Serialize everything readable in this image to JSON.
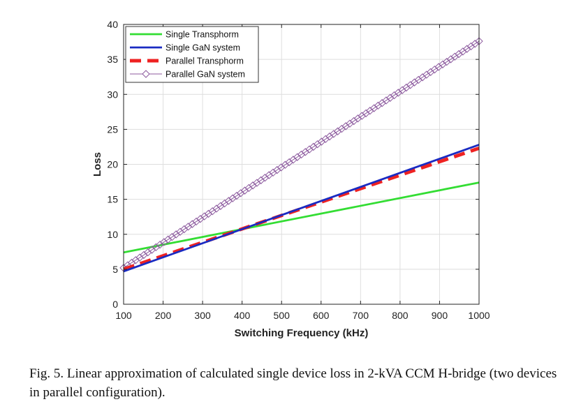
{
  "chart_data": {
    "type": "line",
    "xlabel": "Switching Frequency (kHz)",
    "ylabel": "Loss",
    "xlim": [
      100,
      1000
    ],
    "ylim": [
      0,
      40
    ],
    "xticks": [
      100,
      200,
      300,
      400,
      500,
      600,
      700,
      800,
      900,
      1000
    ],
    "yticks": [
      0,
      5,
      10,
      15,
      20,
      25,
      30,
      35,
      40
    ],
    "grid": true,
    "legend_position": "top-left",
    "series": [
      {
        "name": "Single Transphorm",
        "color": "#33dd33",
        "style": "solid",
        "marker": "none",
        "x": [
          100,
          1000
        ],
        "y": [
          7.4,
          17.4
        ]
      },
      {
        "name": "Single GaN system",
        "color": "#1a2bc2",
        "style": "solid",
        "marker": "none",
        "x": [
          100,
          1000
        ],
        "y": [
          4.7,
          22.8
        ]
      },
      {
        "name": "Parallel Transphorm",
        "color": "#ee2222",
        "style": "dashed",
        "marker": "none",
        "x": [
          100,
          1000
        ],
        "y": [
          5.0,
          22.3
        ]
      },
      {
        "name": "Parallel GaN system",
        "color": "#8c5a9e",
        "style": "solid",
        "marker": "diamond",
        "x": [
          100,
          1000
        ],
        "y": [
          5.2,
          37.6
        ]
      }
    ]
  },
  "caption": "Fig. 5.   Linear approximation of calculated single device loss in 2-kVA CCM H-bridge (two devices in parallel configuration)."
}
